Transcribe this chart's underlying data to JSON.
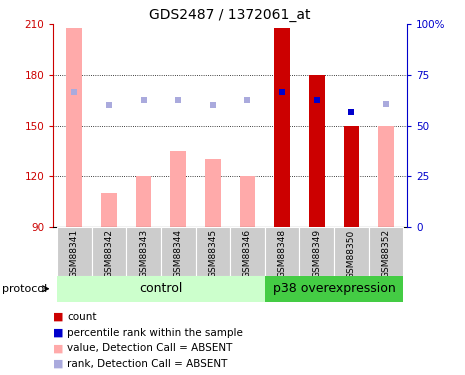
{
  "title": "GDS2487 / 1372061_at",
  "samples": [
    "GSM88341",
    "GSM88342",
    "GSM88343",
    "GSM88344",
    "GSM88345",
    "GSM88346",
    "GSM88348",
    "GSM88349",
    "GSM88350",
    "GSM88352"
  ],
  "n_control": 6,
  "n_p38": 4,
  "bar_values_pink": [
    208,
    110,
    120,
    135,
    130,
    120,
    208,
    180,
    150,
    150
  ],
  "bar_values_red": [
    null,
    null,
    null,
    null,
    null,
    null,
    208,
    180,
    150,
    null
  ],
  "rank_squares_light": [
    170,
    162,
    165,
    165,
    162,
    165,
    170,
    165,
    158,
    163
  ],
  "rank_squares_dark": [
    null,
    null,
    null,
    null,
    null,
    null,
    170,
    165,
    158,
    null
  ],
  "ylim": [
    90,
    210
  ],
  "yticks_left": [
    90,
    120,
    150,
    180,
    210
  ],
  "yticks_right": [
    0,
    25,
    50,
    75,
    100
  ],
  "ytick_right_labels": [
    "0",
    "25",
    "50",
    "75",
    "100%"
  ],
  "left_axis_color": "#cc0000",
  "right_axis_color": "#0000cc",
  "bar_color_pink": "#ffaaaa",
  "bar_color_red": "#cc0000",
  "rank_color_light": "#aaaadd",
  "rank_color_dark": "#0000cc",
  "control_bg_light": "#ccffcc",
  "p38_bg": "#44cc44",
  "sample_bg": "#cccccc",
  "legend_colors": [
    "#cc0000",
    "#0000cc",
    "#ffaaaa",
    "#aaaadd"
  ],
  "legend_labels": [
    "count",
    "percentile rank within the sample",
    "value, Detection Call = ABSENT",
    "rank, Detection Call = ABSENT"
  ]
}
